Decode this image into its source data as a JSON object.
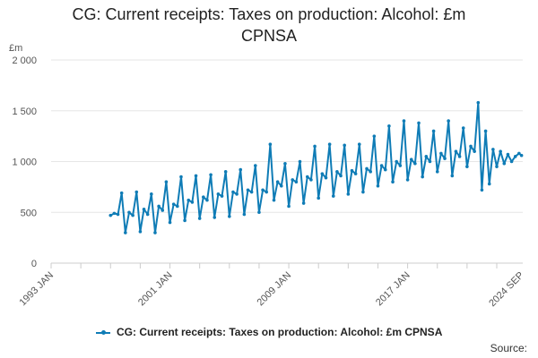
{
  "chart_data": {
    "type": "line",
    "title_line1": "CG: Current receipts: Taxes on production: Alcohol: £m",
    "title_line2": "CPNSA",
    "ylabel": "£m",
    "ylim": [
      0,
      2000
    ],
    "y_ticks": [
      0,
      500,
      1000,
      1500,
      2000
    ],
    "y_tick_labels": [
      "0",
      "500",
      "1 000",
      "1 500",
      "2 000"
    ],
    "xlim": [
      1993.0,
      2024.75
    ],
    "x_ticks": [
      1993.0,
      2001.0,
      2009.0,
      2017.0,
      2024.667
    ],
    "x_tick_labels": [
      "1993 JAN",
      "2001 JAN",
      "2009 JAN",
      "2017 JAN",
      "2024 SEP"
    ],
    "grid": true,
    "legend_position": "bottom",
    "color": "#0f7cb6",
    "series": [
      {
        "name": "CG: Current receipts: Taxes on production: Alcohol: £m CPNSA",
        "x": [
          1997.0,
          1997.25,
          1997.5,
          1997.75,
          1998.0,
          1998.25,
          1998.5,
          1998.75,
          1999.0,
          1999.25,
          1999.5,
          1999.75,
          2000.0,
          2000.25,
          2000.5,
          2000.75,
          2001.0,
          2001.25,
          2001.5,
          2001.75,
          2002.0,
          2002.25,
          2002.5,
          2002.75,
          2003.0,
          2003.25,
          2003.5,
          2003.75,
          2004.0,
          2004.25,
          2004.5,
          2004.75,
          2005.0,
          2005.25,
          2005.5,
          2005.75,
          2006.0,
          2006.25,
          2006.5,
          2006.75,
          2007.0,
          2007.25,
          2007.5,
          2007.75,
          2008.0,
          2008.25,
          2008.5,
          2008.75,
          2009.0,
          2009.25,
          2009.5,
          2009.75,
          2010.0,
          2010.25,
          2010.5,
          2010.75,
          2011.0,
          2011.25,
          2011.5,
          2011.75,
          2012.0,
          2012.25,
          2012.5,
          2012.75,
          2013.0,
          2013.25,
          2013.5,
          2013.75,
          2014.0,
          2014.25,
          2014.5,
          2014.75,
          2015.0,
          2015.25,
          2015.5,
          2015.75,
          2016.0,
          2016.25,
          2016.5,
          2016.75,
          2017.0,
          2017.25,
          2017.5,
          2017.75,
          2018.0,
          2018.25,
          2018.5,
          2018.75,
          2019.0,
          2019.25,
          2019.5,
          2019.75,
          2020.0,
          2020.25,
          2020.5,
          2020.75,
          2021.0,
          2021.25,
          2021.5,
          2021.75,
          2022.0,
          2022.25,
          2022.5,
          2022.75,
          2023.0,
          2023.25,
          2023.5,
          2023.75,
          2024.0,
          2024.25,
          2024.5,
          2024.667
        ],
        "values": [
          470,
          490,
          480,
          690,
          300,
          500,
          470,
          700,
          310,
          530,
          480,
          680,
          300,
          560,
          520,
          800,
          400,
          580,
          560,
          850,
          420,
          620,
          600,
          860,
          440,
          650,
          620,
          870,
          450,
          680,
          660,
          900,
          460,
          700,
          680,
          920,
          480,
          720,
          700,
          960,
          500,
          720,
          700,
          1170,
          620,
          800,
          760,
          980,
          560,
          820,
          800,
          1000,
          590,
          850,
          820,
          1150,
          640,
          880,
          840,
          1170,
          660,
          900,
          860,
          1160,
          680,
          910,
          880,
          1170,
          700,
          930,
          900,
          1250,
          760,
          960,
          920,
          1350,
          800,
          1000,
          960,
          1400,
          820,
          1020,
          980,
          1380,
          850,
          1050,
          1000,
          1300,
          900,
          1080,
          1030,
          1400,
          860,
          1100,
          1050,
          1330,
          950,
          1150,
          1100,
          1580,
          720,
          1300,
          780,
          1120,
          950,
          1100,
          980,
          1070,
          1000,
          1050,
          1080,
          1060
        ]
      }
    ]
  },
  "legend_label": "CG: Current receipts: Taxes on production: Alcohol: £m CPNSA",
  "source_label": "Source:"
}
